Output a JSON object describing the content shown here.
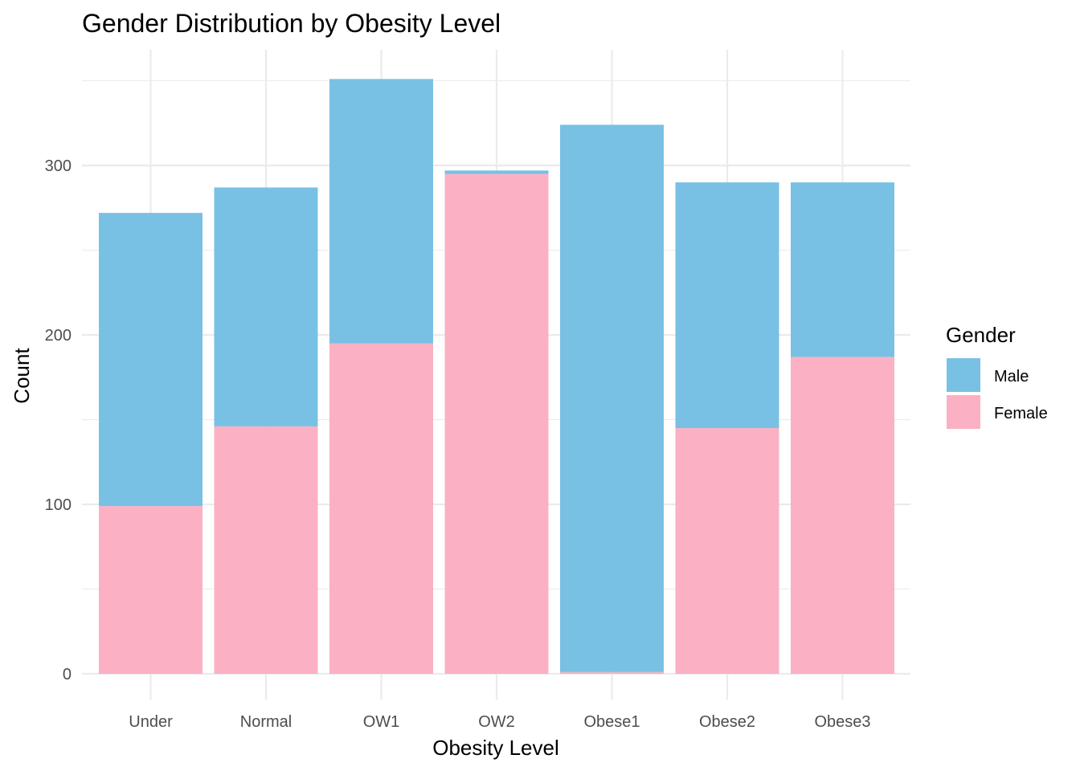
{
  "chart_data": {
    "type": "bar",
    "stacked": true,
    "title": "Gender Distribution by Obesity Level",
    "xlabel": "Obesity Level",
    "ylabel": "Count",
    "categories": [
      "Under",
      "Normal",
      "OW1",
      "OW2",
      "Obese1",
      "Obese2",
      "Obese3"
    ],
    "series": [
      {
        "name": "Female",
        "color": "#FBB1C3",
        "values": [
          99,
          146,
          195,
          295,
          1,
          145,
          187
        ]
      },
      {
        "name": "Male",
        "color": "#79C1E4",
        "values": [
          173,
          141,
          156,
          2,
          323,
          145,
          103
        ]
      }
    ],
    "ylim": [
      0,
      368
    ],
    "yticks": [
      0,
      100,
      200,
      300
    ],
    "grid": true,
    "legend": {
      "title": "Gender",
      "placement": "right",
      "entries": [
        "Male",
        "Female"
      ]
    }
  }
}
